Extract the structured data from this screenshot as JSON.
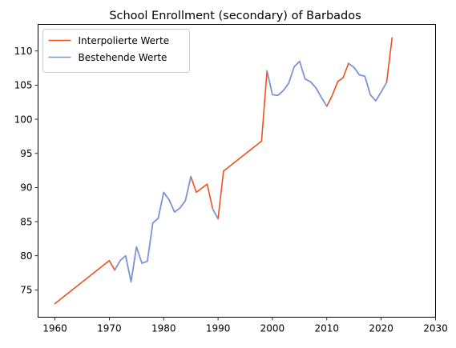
{
  "chart_data": {
    "type": "line",
    "title": "School Enrollment (secondary) of Barbados",
    "xlabel": "",
    "ylabel": "",
    "xlim": [
      1956.9,
      2030
    ],
    "ylim": [
      71.0,
      113.9
    ],
    "xticks": [
      1960,
      1970,
      1980,
      1990,
      2000,
      2010,
      2020,
      2030
    ],
    "yticks": [
      75,
      80,
      85,
      90,
      95,
      100,
      105,
      110
    ],
    "grid": false,
    "legend_position": "top-left",
    "series": [
      {
        "name": "Interpolierte Werte",
        "color": "#f0501c",
        "x": [
          1960,
          1970,
          1971,
          1972,
          1973,
          1974,
          1975,
          1976,
          1977,
          1978,
          1979,
          1980,
          1981,
          1982,
          1983,
          1984,
          1985,
          1986,
          1987,
          1988,
          1989,
          1990,
          1991,
          1998,
          1999,
          2000,
          2001,
          2002,
          2003,
          2004,
          2005,
          2006,
          2007,
          2008,
          2009,
          2010,
          2011,
          2012,
          2013,
          2014,
          2015,
          2016,
          2017,
          2018,
          2019,
          2020,
          2021,
          2022
        ],
        "values": [
          73.0,
          79.3,
          77.9,
          79.3,
          80.0,
          76.2,
          81.3,
          78.9,
          79.2,
          84.8,
          85.5,
          89.3,
          88.2,
          86.4,
          87.0,
          88.1,
          91.6,
          89.3,
          89.9,
          90.5,
          86.9,
          85.4,
          92.4,
          96.8,
          107.1,
          103.6,
          103.5,
          104.2,
          105.3,
          107.7,
          108.5,
          105.9,
          105.5,
          104.6,
          103.2,
          101.9,
          103.5,
          105.5,
          106.1,
          108.2,
          107.6,
          106.5,
          106.3,
          103.6,
          102.7,
          104.0,
          105.4,
          111.9
        ]
      },
      {
        "name": "Bestehende Werte",
        "color": "#6f97e4",
        "x": [
          1971,
          1972,
          1973,
          1974,
          1975,
          1976,
          1977,
          1978,
          1979,
          1980,
          1981,
          1982,
          1983,
          1984,
          1985,
          null,
          1989,
          1990,
          null,
          1999,
          2000,
          2001,
          2002,
          2003,
          2004,
          2005,
          2006,
          2007,
          2008,
          2009,
          2010,
          null,
          2014,
          2015,
          2016,
          2017,
          2018,
          2019,
          2020,
          2021
        ],
        "values": [
          77.9,
          79.3,
          80.0,
          76.2,
          81.3,
          78.9,
          79.2,
          84.8,
          85.5,
          89.3,
          88.2,
          86.4,
          87.0,
          88.1,
          91.6,
          null,
          86.9,
          85.4,
          null,
          107.1,
          103.6,
          103.5,
          104.2,
          105.3,
          107.7,
          108.5,
          105.9,
          105.5,
          104.6,
          103.2,
          101.9,
          null,
          108.2,
          107.6,
          106.5,
          106.3,
          103.6,
          102.7,
          104.0,
          105.4
        ]
      }
    ]
  }
}
